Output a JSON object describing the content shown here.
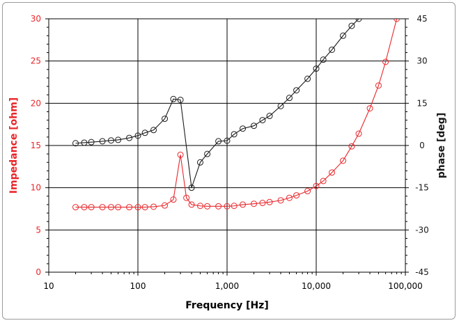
{
  "chart_data": {
    "type": "line",
    "x_scale": "log",
    "xlim": [
      10,
      100000
    ],
    "xlabel": "Frequency [Hz]",
    "x_ticks": [
      10,
      100,
      1000,
      10000,
      100000
    ],
    "x_tick_labels": [
      "10",
      "100",
      "1,000",
      "10,000",
      "100,000"
    ],
    "ylabel_left": "Impedance [ohm]",
    "ylim_left": [
      0,
      30
    ],
    "y_ticks_left": [
      0,
      5,
      10,
      15,
      20,
      25,
      30
    ],
    "ylabel_right": "phase [deg]",
    "ylim_right": [
      -45,
      45
    ],
    "y_ticks_right": [
      -45,
      -30,
      -15,
      0,
      15,
      30,
      45
    ],
    "grid": true,
    "colors": {
      "impedance": "#e8262a",
      "phase": "#1a1a1a",
      "left_axis_text": "#e8262a",
      "right_axis_text": "#1a1a1a",
      "grid": "#000000"
    },
    "series": [
      {
        "name": "Impedance",
        "axis": "left",
        "x": [
          20,
          25,
          30,
          40,
          50,
          60,
          80,
          100,
          120,
          150,
          200,
          250,
          300,
          350,
          400,
          500,
          600,
          800,
          1000,
          1200,
          1500,
          2000,
          2500,
          3000,
          4000,
          5000,
          6000,
          8000,
          10000,
          12000,
          15000,
          20000,
          25000,
          30000,
          40000,
          50000,
          60000,
          80000
        ],
        "values": [
          7.7,
          7.7,
          7.7,
          7.7,
          7.7,
          7.7,
          7.7,
          7.7,
          7.7,
          7.75,
          7.9,
          8.6,
          13.9,
          8.8,
          8.0,
          7.85,
          7.8,
          7.8,
          7.8,
          7.85,
          8.0,
          8.1,
          8.2,
          8.3,
          8.5,
          8.8,
          9.1,
          9.6,
          10.2,
          10.8,
          11.8,
          13.2,
          14.9,
          16.4,
          19.4,
          22.1,
          24.9,
          30.0
        ]
      },
      {
        "name": "phase",
        "axis": "right",
        "x": [
          20,
          25,
          30,
          40,
          50,
          60,
          80,
          100,
          120,
          150,
          200,
          250,
          300,
          400,
          500,
          600,
          800,
          1000,
          1200,
          1500,
          2000,
          2500,
          3000,
          4000,
          5000,
          6000,
          8000,
          10000,
          12000,
          15000,
          20000,
          25000,
          30000
        ],
        "values": [
          0.8,
          1.0,
          1.2,
          1.5,
          1.8,
          2.0,
          2.7,
          3.5,
          4.5,
          5.5,
          9.5,
          16.5,
          16.2,
          -15.0,
          -6.0,
          -3.0,
          1.5,
          1.7,
          4.0,
          6.0,
          7.0,
          9.0,
          10.5,
          14.0,
          16.9,
          19.6,
          23.7,
          27.3,
          30.5,
          34.0,
          39.0,
          42.5,
          45.0
        ]
      }
    ]
  }
}
